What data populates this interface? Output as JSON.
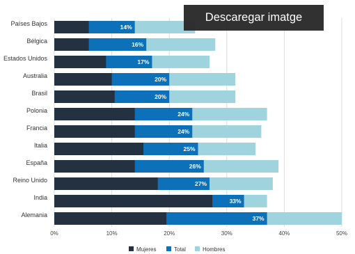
{
  "download_label": "Descaregar imatge",
  "colors": {
    "mujeres": "#243140",
    "total": "#0c71b8",
    "hombres": "#9fd4df"
  },
  "chart_data": {
    "type": "bar",
    "orientation": "horizontal",
    "stacking": "overlay",
    "categories": [
      "Países Bajos",
      "Bélgica",
      "Estados Unidos",
      "Australia",
      "Brasil",
      "Polonia",
      "Francia",
      "Italia",
      "España",
      "Reino Unido",
      "India",
      "Alemania"
    ],
    "series": [
      {
        "name": "Mujeres",
        "values": [
          6,
          6,
          9,
          10,
          10.5,
          14,
          14,
          15.5,
          14,
          18,
          27.5,
          19.5
        ]
      },
      {
        "name": "Total",
        "values": [
          14,
          16,
          17,
          20,
          20,
          24,
          24,
          25,
          26,
          27,
          33,
          37
        ]
      },
      {
        "name": "Hombres",
        "values": [
          24.5,
          28,
          27,
          31.5,
          31.5,
          37,
          36,
          35,
          39,
          38,
          37,
          50
        ]
      }
    ],
    "data_labels": [
      "14%",
      "16%",
      "17%",
      "20%",
      "20%",
      "24%",
      "24%",
      "25%",
      "26%",
      "27%",
      "33%",
      "37%"
    ],
    "xlim": [
      0,
      50
    ],
    "xticks": [
      0,
      10,
      20,
      30,
      40,
      50
    ],
    "xtick_labels": [
      "0%",
      "10%",
      "20%",
      "30%",
      "40%",
      "50%"
    ],
    "grid": true,
    "legend": {
      "position": "bottom",
      "entries": [
        "Mujeres",
        "Total",
        "Hombres"
      ]
    }
  }
}
